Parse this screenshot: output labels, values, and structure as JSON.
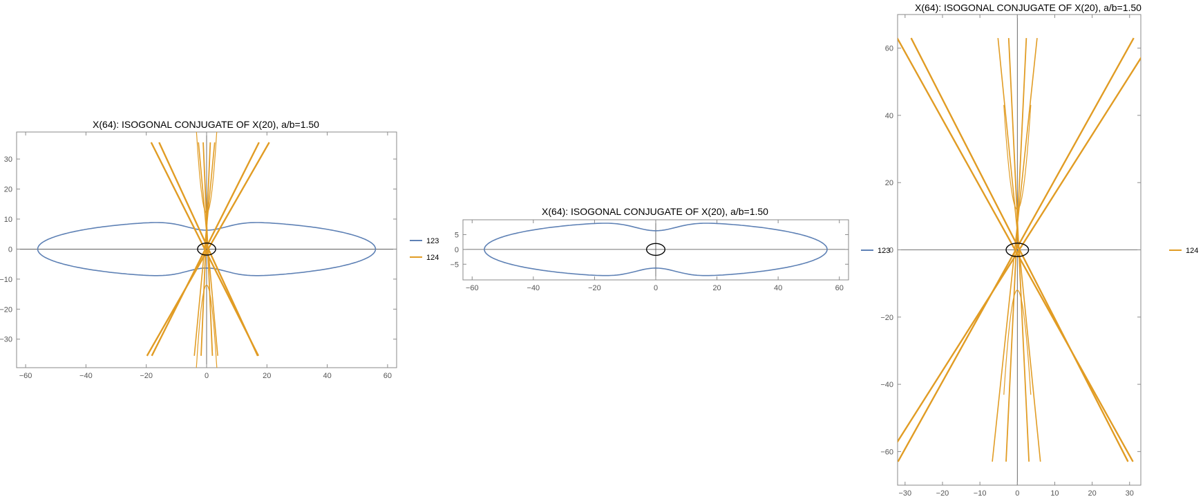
{
  "chart_data": [
    {
      "type": "line",
      "title": "X(64): ISOGONAL CONJUGATE OF X(20), a/b=1.50",
      "xlim": [
        -63,
        63
      ],
      "ylim": [
        -39.5,
        39
      ],
      "x_ticks": [
        -60,
        -40,
        -20,
        0,
        20,
        40,
        60
      ],
      "y_ticks": [
        -30,
        -20,
        -10,
        0,
        10,
        20,
        30
      ],
      "grid": false,
      "legend_position": "right",
      "series": [
        {
          "name": "123",
          "color": "#5E81B5",
          "kind": "locus-123"
        },
        {
          "name": "124",
          "color": "#E19C24",
          "kind": "locus-124"
        }
      ],
      "triangle_ellipse": {
        "a": 3,
        "b": 2
      }
    },
    {
      "type": "line",
      "title": "X(64): ISOGONAL CONJUGATE OF X(20), a/b=1.50",
      "xlim": [
        -63,
        63
      ],
      "ylim": [
        -10.3,
        10
      ],
      "x_ticks": [
        -60,
        -40,
        -20,
        0,
        20,
        40,
        60
      ],
      "y_ticks": [
        -5,
        0,
        5
      ],
      "grid": false,
      "legend_position": "right",
      "series": [
        {
          "name": "123",
          "color": "#5E81B5",
          "kind": "locus-123"
        }
      ],
      "triangle_ellipse": {
        "a": 3,
        "b": 2
      }
    },
    {
      "type": "line",
      "title": "X(64): ISOGONAL CONJUGATE OF X(20), a/b=1.50",
      "xlim": [
        -32,
        33
      ],
      "ylim": [
        -70,
        70
      ],
      "x_ticks": [
        -30,
        -20,
        -10,
        0,
        10,
        20,
        30
      ],
      "y_ticks": [
        -60,
        -40,
        -20,
        0,
        20,
        40,
        60
      ],
      "grid": false,
      "legend_position": "right",
      "series": [
        {
          "name": "124",
          "color": "#E19C24",
          "kind": "locus-124"
        }
      ],
      "triangle_ellipse": {
        "a": 3,
        "b": 2
      }
    }
  ]
}
